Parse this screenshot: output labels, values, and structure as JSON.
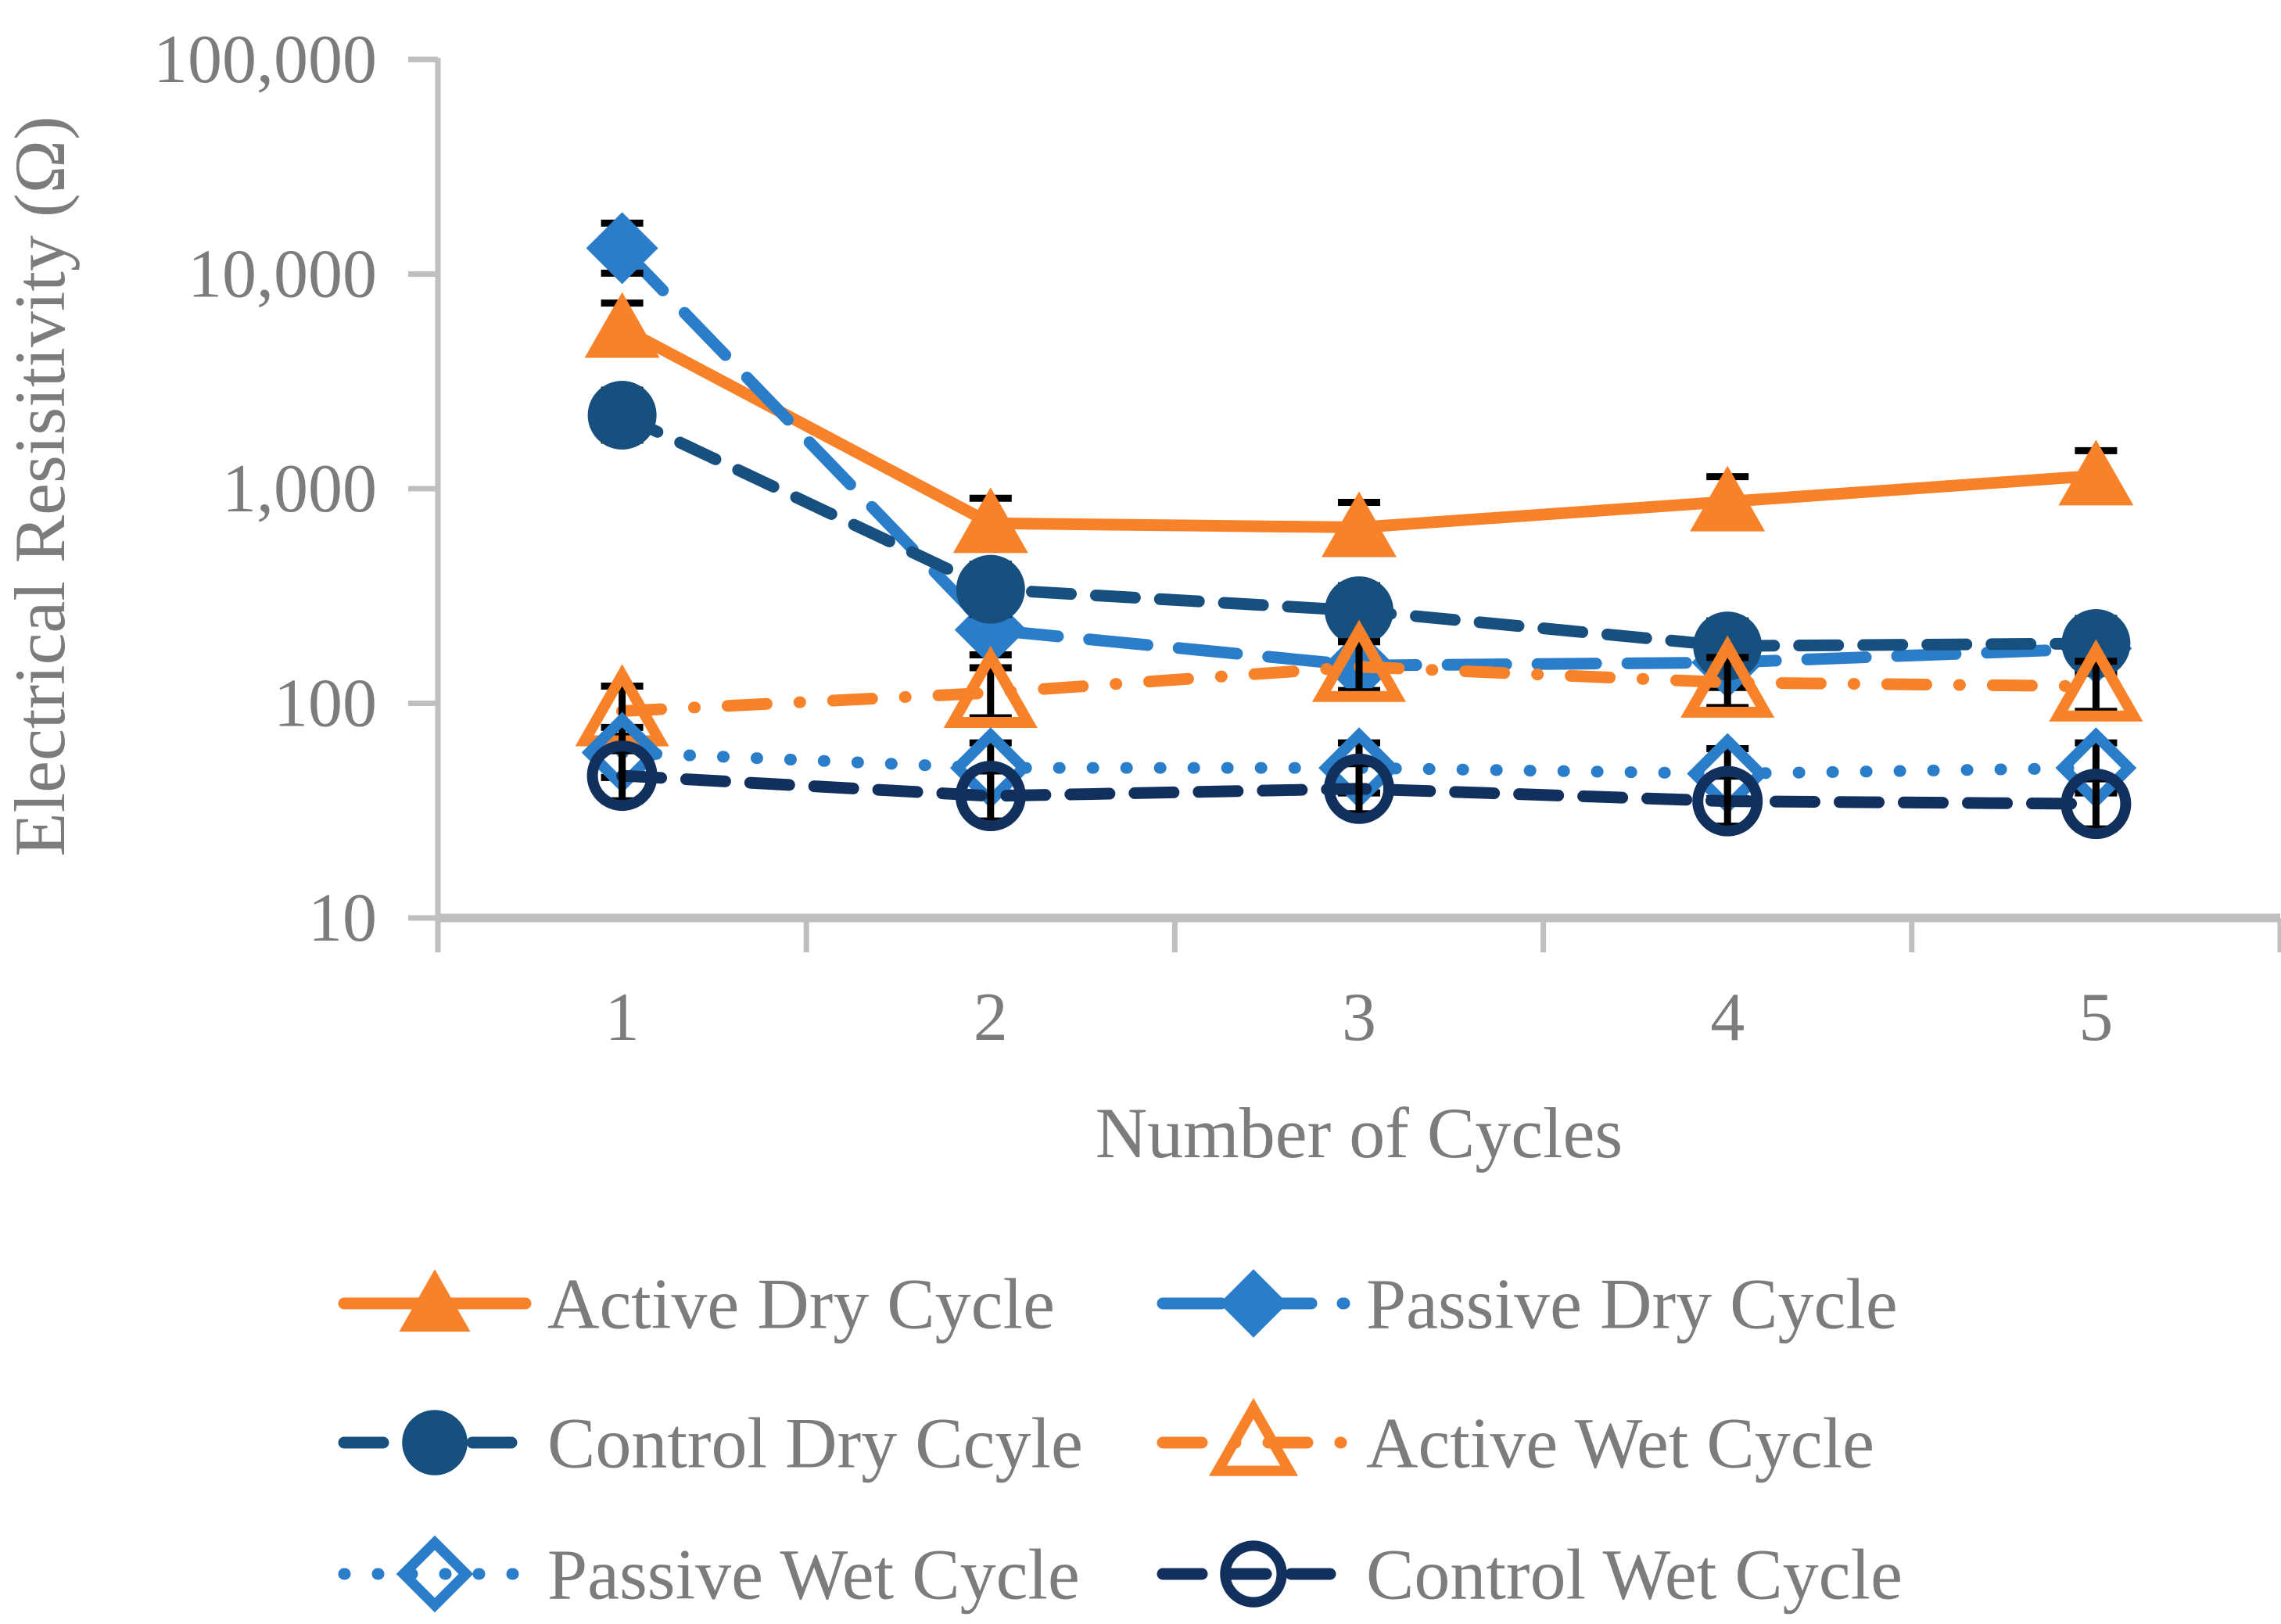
{
  "chart_data": {
    "type": "line",
    "title": "",
    "xlabel": "Number of Cycles",
    "ylabel": "Electrical Resisitivity (Ω)",
    "y_scale": "log10",
    "ylim": [
      10,
      100000
    ],
    "grid": "off",
    "legend_position": "bottom",
    "x": [
      1,
      2,
      3,
      4,
      5
    ],
    "x_tick_labels": [
      "1",
      "2",
      "3",
      "4",
      "5"
    ],
    "y_ticks": [
      {
        "value": 100000,
        "label": "100,000"
      },
      {
        "value": 10000,
        "label": "10,000"
      },
      {
        "value": 1000,
        "label": "1,000"
      },
      {
        "value": 100,
        "label": "100"
      },
      {
        "value": 10,
        "label": "10"
      }
    ],
    "series": [
      {
        "name": "Active Dry Cycle",
        "color": "#F8822A",
        "marker": "triangle-filled",
        "line": "solid",
        "values": [
          5600,
          690,
          660,
          870,
          1150
        ]
      },
      {
        "name": "Passive Dry Cycle",
        "color": "#2A7DC9",
        "marker": "diamond-filled",
        "line": "long-dash",
        "values": [
          13200,
          220,
          150,
          155,
          180
        ]
      },
      {
        "name": "Control Dry Ccyle",
        "color": "#17507F",
        "marker": "circle-filled",
        "line": "dash",
        "values": [
          2200,
          340,
          270,
          185,
          190
        ]
      },
      {
        "name": "Active Wet Cycle",
        "color": "#F8822A",
        "marker": "triangle-open",
        "line": "dash-dot",
        "values": [
          92,
          112,
          148,
          125,
          120
        ]
      },
      {
        "name": "Passive Wet Cycle",
        "color": "#2A7DC9",
        "marker": "diamond-open",
        "line": "dot",
        "values": [
          59,
          50,
          50,
          47,
          50
        ]
      },
      {
        "name": "Control Wet Cycle",
        "color": "#12305E",
        "marker": "circle-open",
        "line": "dash",
        "values": [
          46,
          37,
          40,
          35,
          34
        ]
      }
    ],
    "error_bars": {
      "visible": true,
      "color": "#000000"
    },
    "legend_rows": [
      [
        0,
        1
      ],
      [
        2,
        3
      ],
      [
        4,
        5
      ]
    ]
  },
  "style": {
    "text_color": "#7C7C7C",
    "axis_line_color": "#BFBFBF",
    "background": "#FFFFFF"
  }
}
